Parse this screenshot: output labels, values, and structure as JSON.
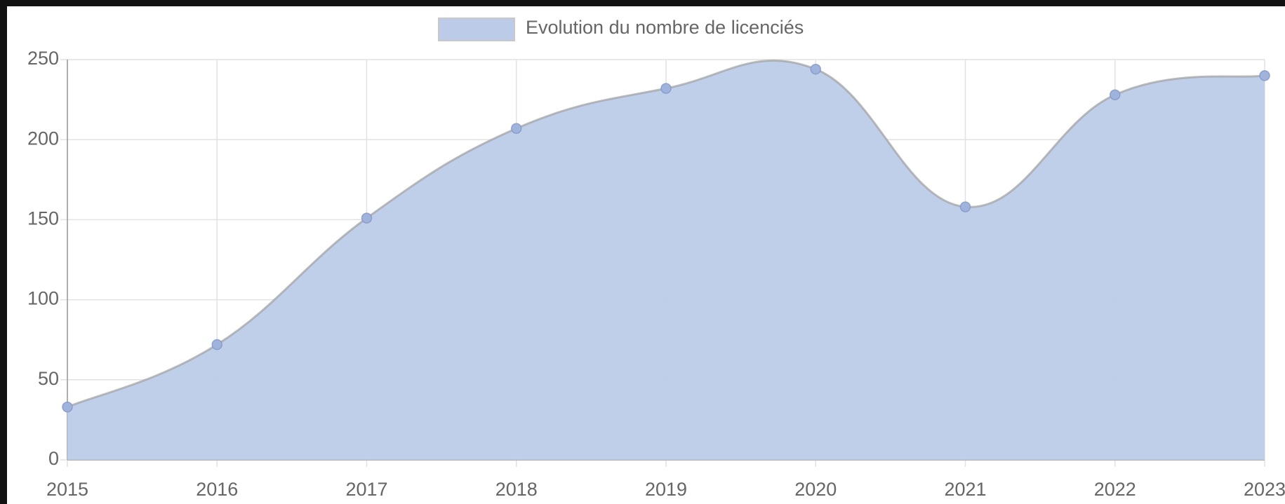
{
  "chart_data": {
    "type": "area",
    "categories": [
      "2015",
      "2016",
      "2017",
      "2018",
      "2019",
      "2020",
      "2021",
      "2022",
      "2023"
    ],
    "series": [
      {
        "name": "Evolution du nombre de licenciés",
        "color": "#bccbe8",
        "values": [
          33,
          72,
          151,
          207,
          232,
          244,
          158,
          228,
          240
        ]
      }
    ],
    "ylim": [
      0,
      250
    ],
    "yticks": [
      0,
      50,
      100,
      150,
      200,
      250
    ],
    "grid": true,
    "legend": "top"
  }
}
